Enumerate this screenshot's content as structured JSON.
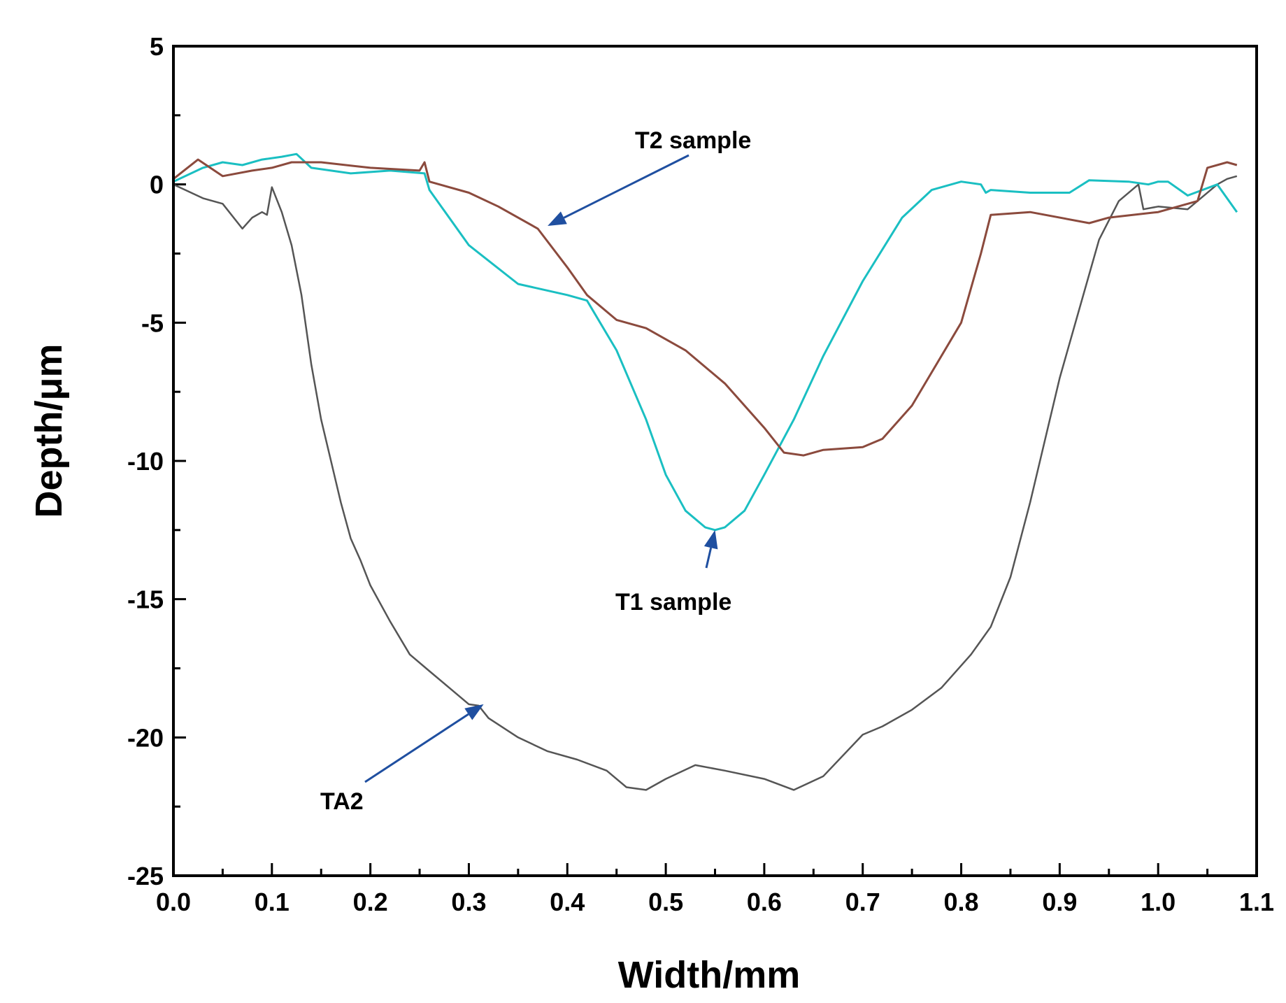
{
  "chart_data": {
    "type": "line",
    "title": "",
    "xlabel": "Width/mm",
    "ylabel": "Depth/μm",
    "xlim": [
      0.0,
      1.1
    ],
    "ylim": [
      -25,
      5
    ],
    "xticks": [
      "0.0",
      "0.1",
      "0.2",
      "0.3",
      "0.4",
      "0.5",
      "0.6",
      "0.7",
      "0.8",
      "0.9",
      "1.0",
      "1.1"
    ],
    "yticks": [
      "5",
      "0",
      "-5",
      "-10",
      "-15",
      "-20",
      "-25"
    ],
    "grid": false,
    "series": [
      {
        "name": "TA2",
        "color": "#555555",
        "x": [
          0.0,
          0.03,
          0.05,
          0.07,
          0.08,
          0.09,
          0.095,
          0.1,
          0.11,
          0.12,
          0.13,
          0.14,
          0.15,
          0.16,
          0.17,
          0.18,
          0.19,
          0.2,
          0.22,
          0.24,
          0.26,
          0.28,
          0.3,
          0.31,
          0.32,
          0.35,
          0.38,
          0.41,
          0.44,
          0.46,
          0.48,
          0.5,
          0.53,
          0.56,
          0.6,
          0.63,
          0.66,
          0.7,
          0.72,
          0.75,
          0.78,
          0.81,
          0.83,
          0.85,
          0.87,
          0.88,
          0.9,
          0.92,
          0.94,
          0.96,
          0.98,
          0.985,
          1.0,
          1.03,
          1.06,
          1.07,
          1.08
        ],
        "y": [
          0.0,
          -0.5,
          -0.7,
          -1.6,
          -1.2,
          -1.0,
          -1.1,
          -0.1,
          -1.0,
          -2.2,
          -4.0,
          -6.5,
          -8.5,
          -10.0,
          -11.5,
          -12.8,
          -13.6,
          -14.5,
          -15.8,
          -17.0,
          -17.6,
          -18.2,
          -18.8,
          -18.85,
          -19.3,
          -20.0,
          -20.5,
          -20.8,
          -21.2,
          -21.8,
          -21.9,
          -21.5,
          -21.0,
          -21.2,
          -21.5,
          -21.9,
          -21.4,
          -19.9,
          -19.6,
          -19.0,
          -18.2,
          -17.0,
          -16.0,
          -14.2,
          -11.5,
          -10.0,
          -7.0,
          -4.5,
          -2.0,
          -0.6,
          0.0,
          -0.9,
          -0.8,
          -0.9,
          0.0,
          0.2,
          0.3
        ]
      },
      {
        "name": "T1 sample",
        "color": "#1abfc2",
        "x": [
          0.0,
          0.03,
          0.05,
          0.07,
          0.09,
          0.11,
          0.125,
          0.14,
          0.18,
          0.22,
          0.255,
          0.26,
          0.3,
          0.35,
          0.4,
          0.42,
          0.45,
          0.48,
          0.5,
          0.52,
          0.54,
          0.55,
          0.56,
          0.58,
          0.6,
          0.63,
          0.66,
          0.7,
          0.74,
          0.77,
          0.8,
          0.82,
          0.825,
          0.83,
          0.87,
          0.91,
          0.93,
          0.97,
          0.99,
          1.0,
          1.01,
          1.03,
          1.06,
          1.08
        ],
        "y": [
          0.1,
          0.6,
          0.8,
          0.7,
          0.9,
          1.0,
          1.1,
          0.6,
          0.4,
          0.5,
          0.4,
          -0.2,
          -2.2,
          -3.6,
          -4.0,
          -4.2,
          -6.0,
          -8.5,
          -10.5,
          -11.8,
          -12.4,
          -12.5,
          -12.4,
          -11.8,
          -10.5,
          -8.5,
          -6.2,
          -3.5,
          -1.2,
          -0.2,
          0.1,
          0.0,
          -0.3,
          -0.2,
          -0.3,
          -0.3,
          0.15,
          0.1,
          0.0,
          0.1,
          0.1,
          -0.4,
          0.0,
          -1.0
        ]
      },
      {
        "name": "T2 sample",
        "color": "#8b4a3d",
        "x": [
          0.0,
          0.025,
          0.05,
          0.08,
          0.1,
          0.12,
          0.15,
          0.2,
          0.25,
          0.255,
          0.26,
          0.3,
          0.33,
          0.37,
          0.4,
          0.42,
          0.45,
          0.48,
          0.52,
          0.56,
          0.6,
          0.62,
          0.64,
          0.66,
          0.7,
          0.72,
          0.75,
          0.8,
          0.82,
          0.83,
          0.87,
          0.93,
          0.95,
          1.0,
          1.04,
          1.05,
          1.07,
          1.08
        ],
        "y": [
          0.2,
          0.9,
          0.3,
          0.5,
          0.6,
          0.8,
          0.8,
          0.6,
          0.5,
          0.8,
          0.1,
          -0.3,
          -0.8,
          -1.6,
          -3.0,
          -4.0,
          -4.9,
          -5.2,
          -6.0,
          -7.2,
          -8.8,
          -9.7,
          -9.8,
          -9.6,
          -9.5,
          -9.2,
          -8.0,
          -5.0,
          -2.5,
          -1.1,
          -1.0,
          -1.4,
          -1.2,
          -1.0,
          -0.6,
          0.6,
          0.8,
          0.7
        ]
      }
    ],
    "annotations": [
      {
        "text": "T2 sample",
        "target": [
          0.38,
          -1.5
        ]
      },
      {
        "text": "T1 sample",
        "target": [
          0.55,
          -12.5
        ]
      },
      {
        "text": "TA2",
        "target": [
          0.315,
          -18.8
        ]
      }
    ]
  }
}
